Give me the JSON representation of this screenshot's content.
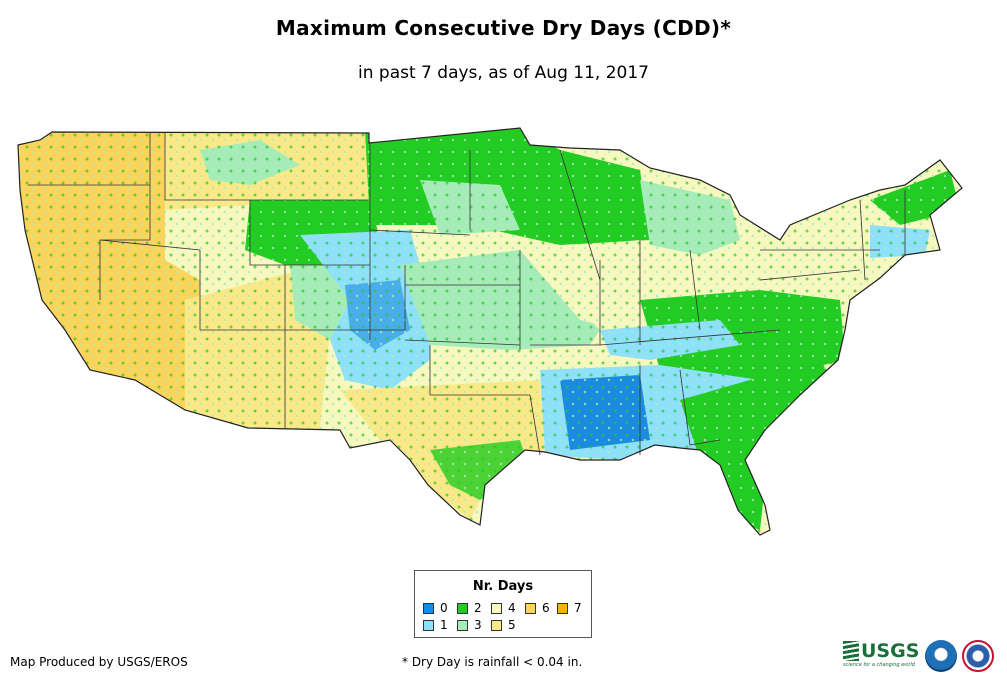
{
  "header": {
    "title": "Maximum Consecutive Dry Days (CDD)*",
    "subtitle": "in past 7 days, as of Aug 11, 2017"
  },
  "legend": {
    "title": "Nr. Days",
    "items": [
      {
        "label": "0",
        "color": "#1b8be0"
      },
      {
        "label": "1",
        "color": "#8ee0fb"
      },
      {
        "label": "2",
        "color": "#22cc22"
      },
      {
        "label": "3",
        "color": "#a6ecb8"
      },
      {
        "label": "4",
        "color": "#f7f7c0"
      },
      {
        "label": "5",
        "color": "#fbe989"
      },
      {
        "label": "6",
        "color": "#fbd45c"
      },
      {
        "label": "7",
        "color": "#f6b400"
      }
    ]
  },
  "footer": {
    "credit": "Map Produced by USGS/EROS",
    "footnote": "* Dry Day is rainfall < 0.04 in."
  },
  "logos": {
    "usgs": "USGS",
    "usgs_tagline": "science for a changing world",
    "noaa": "noaa-logo",
    "nws": "nws-logo"
  },
  "map": {
    "region": "Contiguous United States",
    "palette": {
      "outline": "#222222",
      "west_dry": "#fbd45c",
      "southwest": "#fbe989",
      "plains": "#f7f7c0",
      "midwest": "#a6ecb8",
      "wet": "#22cc22",
      "rain1": "#8ee0fb",
      "rain0": "#1b8be0"
    }
  }
}
